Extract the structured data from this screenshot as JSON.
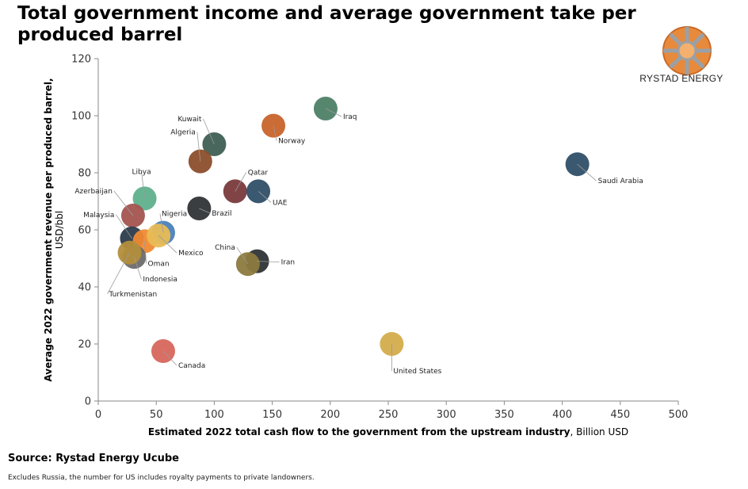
{
  "title": "Total government income and average government take per produced barrel",
  "brand": {
    "name": "RYSTAD ENERGY"
  },
  "source": "Source: Rystad Energy Ucube",
  "note": "Excludes Russia, the number for US includes royalty payments to private landowners.",
  "chart_data": {
    "type": "scatter",
    "xlabel": "Estimated 2022 total cash flow to the government from the upstream industry",
    "xlabel_unit": ", Billion USD",
    "ylabel": "Average 2022 government revenue per produced barrel,",
    "ylabel_unit": "USD/bbl",
    "xlim": [
      0,
      500
    ],
    "ylim": [
      0,
      120
    ],
    "xticks": [
      0,
      50,
      100,
      150,
      200,
      250,
      300,
      350,
      400,
      450,
      500
    ],
    "yticks": [
      0,
      20,
      40,
      60,
      80,
      100,
      120
    ],
    "grid": false,
    "legend": "none",
    "points": [
      {
        "name": "Iraq",
        "x": 196,
        "y": 102.5,
        "color": "#4e7f67"
      },
      {
        "name": "Norway",
        "x": 151,
        "y": 96.5,
        "color": "#c8632b"
      },
      {
        "name": "Kuwait",
        "x": 100,
        "y": 90,
        "color": "#3f5f54"
      },
      {
        "name": "Algeria",
        "x": 88,
        "y": 84,
        "color": "#8b4e2b"
      },
      {
        "name": "Saudi Arabia",
        "x": 413,
        "y": 83,
        "color": "#2f4f68"
      },
      {
        "name": "Qatar",
        "x": 118,
        "y": 73.5,
        "color": "#7a3a3c"
      },
      {
        "name": "UAE",
        "x": 138,
        "y": 73.5,
        "color": "#2f4f68"
      },
      {
        "name": "Libya",
        "x": 40,
        "y": 71,
        "color": "#5fb08d"
      },
      {
        "name": "Brazil",
        "x": 87,
        "y": 67.5,
        "color": "#2f3436"
      },
      {
        "name": "Azerbaijan",
        "x": 30,
        "y": 65,
        "color": "#a3544f"
      },
      {
        "name": "Malaysia",
        "x": 29,
        "y": 57,
        "color": "#2c3b4b"
      },
      {
        "name": "Nigeria",
        "x": 56,
        "y": 59,
        "color": "#4a82ba"
      },
      {
        "name": "Oman",
        "x": 40,
        "y": 56,
        "color": "#ef8a34"
      },
      {
        "name": "Mexico",
        "x": 52,
        "y": 58,
        "color": "#e8bc55"
      },
      {
        "name": "Indonesia",
        "x": 31,
        "y": 50.5,
        "color": "#6b6b6b"
      },
      {
        "name": "Turkmenistan",
        "x": 27,
        "y": 52,
        "color": "#b38e3b"
      },
      {
        "name": "Iran",
        "x": 137,
        "y": 49,
        "color": "#2f3436"
      },
      {
        "name": "China",
        "x": 129,
        "y": 48,
        "color": "#8c7a3e"
      },
      {
        "name": "Canada",
        "x": 56,
        "y": 17.5,
        "color": "#d7675c"
      },
      {
        "name": "United States",
        "x": 253,
        "y": 20,
        "color": "#d4ac4c"
      }
    ]
  }
}
